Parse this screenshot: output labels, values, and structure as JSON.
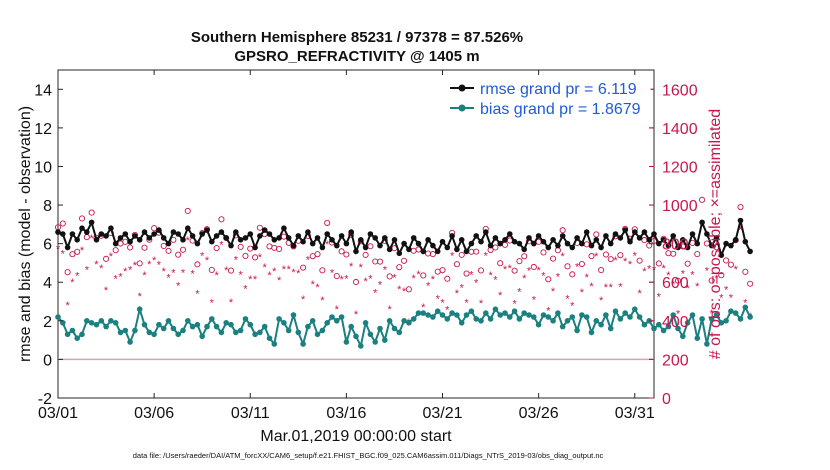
{
  "chart_data": {
    "type": "line",
    "title": "Southern Hemisphere 85231 / 97378 = 87.526%",
    "subtitle": "GPSRO_REFRACTIVITY @ 1405 m",
    "xlabel": "Mar.01,2019 00:00:00 start",
    "ylabel": "rmse and bias (model - observation)",
    "ylabel_right": "# of obs: o=possible; ×=assimilated",
    "footer": "data file: /Users/raeder/DAI/ATM_forcXX/CAM6_setup/f.e21.FHIST_BGC.f09_025.CAM6assim.011/Diags_NTrS_2019-03/obs_diag_output.nc",
    "x_tick_labels": [
      "03/01",
      "03/06",
      "03/11",
      "03/16",
      "03/21",
      "03/26",
      "03/31"
    ],
    "x_tick_days": [
      1,
      6,
      11,
      16,
      21,
      26,
      31
    ],
    "xlim": [
      1,
      32
    ],
    "ylim": [
      -2,
      15
    ],
    "y_ticks": [
      -2,
      0,
      2,
      4,
      6,
      8,
      10,
      12,
      14
    ],
    "ylim_right": [
      0,
      1700
    ],
    "y_ticks_right": [
      0,
      200,
      400,
      600,
      800,
      1000,
      1200,
      1400,
      1600
    ],
    "series": [
      {
        "name": "rmse grand pr = 6.119",
        "color": "#111111",
        "values": [
          6.6,
          6.5,
          5.8,
          6.5,
          6.2,
          6.8,
          6.6,
          7.1,
          6.2,
          6.5,
          6.4,
          6.8,
          6.0,
          6.3,
          6.5,
          6.1,
          6.4,
          6.2,
          6.6,
          6.3,
          6.5,
          6.7,
          6.3,
          6.0,
          6.6,
          6.5,
          6.2,
          6.8,
          6.4,
          6.0,
          6.5,
          6.7,
          6.1,
          6.4,
          6.6,
          6.3,
          5.9,
          6.6,
          6.2,
          6.3,
          6.5,
          5.8,
          6.4,
          6.7,
          6.5,
          6.2,
          6.3,
          6.8,
          6.3,
          5.9,
          6.4,
          6.1,
          6.6,
          6.0,
          6.3,
          5.8,
          6.5,
          6.2,
          5.9,
          6.4,
          6.0,
          6.6,
          5.6,
          6.2,
          5.8,
          6.5,
          6.3,
          5.9,
          6.3,
          5.7,
          6.2,
          5.5,
          6.0,
          5.7,
          6.3,
          6.0,
          5.6,
          6.2,
          5.9,
          5.6,
          6.1,
          5.8,
          6.4,
          5.7,
          6.2,
          5.6,
          6.0,
          6.4,
          6.1,
          6.6,
          5.9,
          6.3,
          6.0,
          6.2,
          6.5,
          6.1,
          6.0,
          5.7,
          6.3,
          6.0,
          6.4,
          6.1,
          5.8,
          6.2,
          5.9,
          6.4,
          6.0,
          5.8,
          6.3,
          6.0,
          6.6,
          5.9,
          6.2,
          5.8,
          6.4,
          6.0,
          6.5,
          6.3,
          6.7,
          6.1,
          6.6,
          6.3,
          6.6,
          6.2,
          6.5,
          6.0,
          6.2,
          5.9,
          6.4,
          5.8,
          6.2,
          5.8,
          6.5,
          6.0,
          7.1,
          6.5,
          5.9,
          6.3,
          5.4,
          6.0,
          5.9,
          6.2,
          7.2,
          6.1,
          5.6
        ],
        "start_day": 1.0,
        "step_days": 0.25
      },
      {
        "name": "bias grand pr = 1.8679",
        "color": "#1a8080",
        "values": [
          2.2,
          1.9,
          1.3,
          1.5,
          1.1,
          1.3,
          2.0,
          1.9,
          1.8,
          2.0,
          1.7,
          2.0,
          1.9,
          1.4,
          1.5,
          0.9,
          1.5,
          2.6,
          1.8,
          1.4,
          1.3,
          1.8,
          1.6,
          2.0,
          1.6,
          1.3,
          1.5,
          2.0,
          1.7,
          1.8,
          1.2,
          1.7,
          2.1,
          1.7,
          1.4,
          1.9,
          1.8,
          1.4,
          1.5,
          2.1,
          1.8,
          1.3,
          1.4,
          1.7,
          1.1,
          0.8,
          2.1,
          1.9,
          1.5,
          2.3,
          1.4,
          0.8,
          1.7,
          2.0,
          1.3,
          1.5,
          1.9,
          2.2,
          2.0,
          2.2,
          0.9,
          1.7,
          1.2,
          0.7,
          1.9,
          1.3,
          0.9,
          1.6,
          1.0,
          2.0,
          1.6,
          1.4,
          2.0,
          1.9,
          2.1,
          2.4,
          2.4,
          2.3,
          2.2,
          2.5,
          2.3,
          2.1,
          2.4,
          2.3,
          1.9,
          2.3,
          2.5,
          2.1,
          2.0,
          2.4,
          2.1,
          2.6,
          2.3,
          2.4,
          2.2,
          2.5,
          2.1,
          2.4,
          2.3,
          2.2,
          1.8,
          2.3,
          2.2,
          2.0,
          2.4,
          1.7,
          2.0,
          2.2,
          1.5,
          2.3,
          2.2,
          1.4,
          2.0,
          1.8,
          2.3,
          1.6,
          2.5,
          2.1,
          2.4,
          2.2,
          2.6,
          2.2,
          1.8,
          2.0,
          1.6,
          1.8,
          1.5,
          1.7,
          2.3,
          1.6,
          1.2,
          1.9,
          2.3,
          1.1,
          2.1,
          0.8,
          2.1,
          2.3,
          1.9,
          2.0,
          2.5,
          2.4,
          2.1,
          2.7,
          2.2
        ],
        "start_day": 1.0,
        "step_days": 0.25
      }
    ]
  }
}
